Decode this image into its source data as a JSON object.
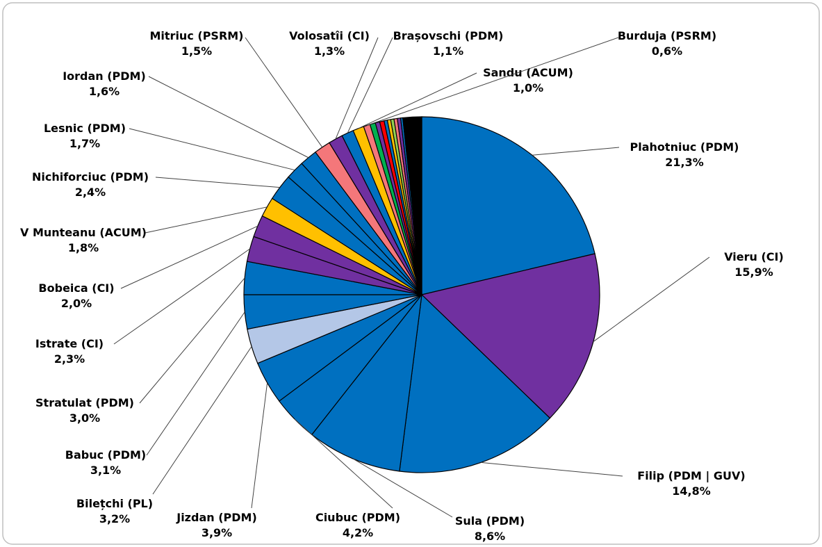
{
  "chart_data": {
    "type": "pie",
    "categories": [
      "Plahotniuc (PDM)",
      "Vieru (CI)",
      "Filip (PDM | GUV)",
      "Sula (PDM)",
      "Ciubuc (PDM)",
      "Jizdan (PDM)",
      "Bilețchi (PL)",
      "Babuc (PDM)",
      "Stratulat (PDM)",
      "Istrate (CI)",
      "Bobeica (CI)",
      "V Munteanu (ACUM)",
      "Nichiforciuc (PDM)",
      "Lesnic (PDM)",
      "Iordan (PDM)",
      "Mitriuc (PSRM)",
      "Volosatîi (CI)",
      "Brașovschi (PDM)",
      "Sandu (ACUM)",
      "Burduja (PSRM)",
      null,
      null,
      null,
      null,
      null,
      null,
      null,
      null,
      null,
      null
    ],
    "values": [
      21.3,
      15.9,
      14.8,
      8.6,
      4.2,
      3.9,
      3.2,
      3.1,
      3.0,
      2.3,
      2.0,
      1.8,
      2.4,
      1.7,
      1.6,
      1.5,
      1.3,
      1.1,
      1.0,
      0.6,
      0.5,
      0.4,
      0.4,
      0.3,
      0.3,
      0.3,
      0.3,
      0.3,
      0.2,
      1.7
    ],
    "value_labels": [
      "21,3%",
      "15,9%",
      "14,8%",
      "8,6%",
      "4,2%",
      "3,9%",
      "3,2%",
      "3,1%",
      "3,0%",
      "2,3%",
      "2,0%",
      "1,8%",
      "2,4%",
      "1,7%",
      "1,6%",
      "1,5%",
      "1,3%",
      "1,1%",
      "1,0%",
      "0,6%",
      null,
      null,
      null,
      null,
      null,
      null,
      null,
      null,
      null,
      null
    ],
    "colors": [
      "#0070c0",
      "#7030a0",
      "#0070c0",
      "#0070c0",
      "#0070c0",
      "#0070c0",
      "#b4c7e7",
      "#0070c0",
      "#0070c0",
      "#7030a0",
      "#7030a0",
      "#ffc000",
      "#0070c0",
      "#0070c0",
      "#0070c0",
      "#f4777a",
      "#7030a0",
      "#0070c0",
      "#ffc000",
      "#f4777a",
      "#00b050",
      "#7030a0",
      "#ff0000",
      "#0070c0",
      "#ffc000",
      "#92d050",
      "#f4777a",
      "#7030a0",
      "#0070c0",
      "#000000"
    ]
  }
}
